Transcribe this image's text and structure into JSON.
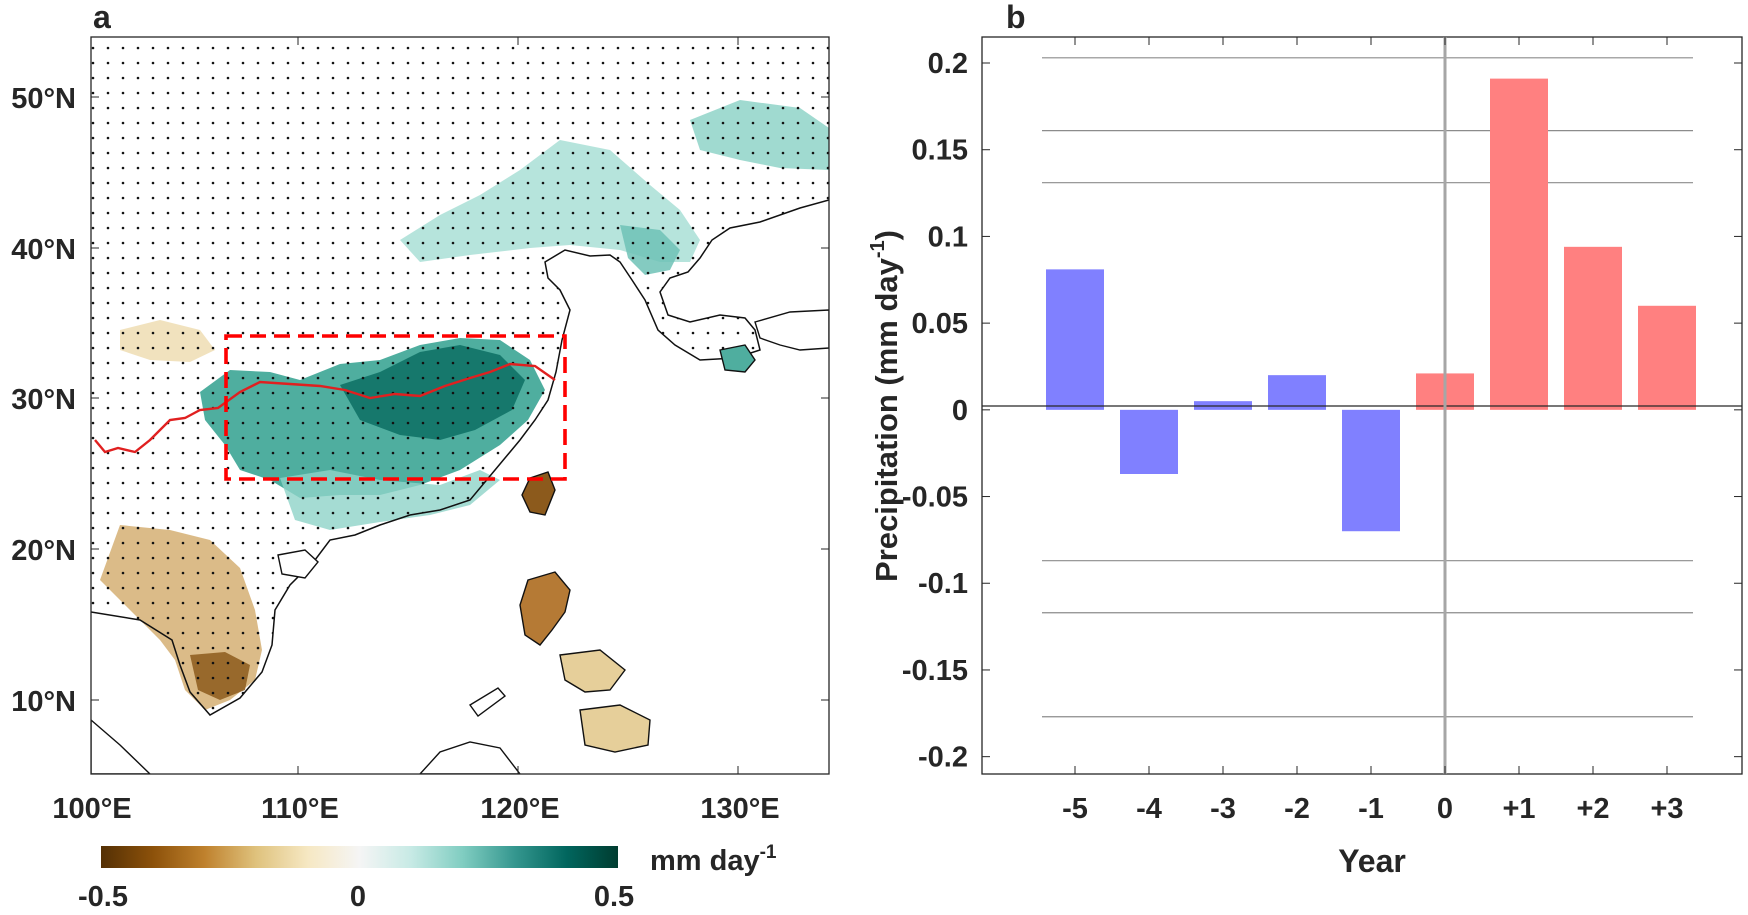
{
  "panel_a": {
    "label": "a",
    "lat_ticks": [
      "50°N",
      "40°N",
      "30°N",
      "20°N",
      "10°N"
    ],
    "lon_ticks": [
      "100°E",
      "110°E",
      "120°E",
      "130°E"
    ],
    "colorbar": {
      "unit": "mm day",
      "unit_sup": "-1",
      "ticks": [
        "-0.5",
        "0",
        "0.5"
      ],
      "colors": [
        "#543005",
        "#8c510a",
        "#bf812d",
        "#dfc27d",
        "#f6e8c3",
        "#f5f5f5",
        "#c7eae5",
        "#80cdc1",
        "#35978f",
        "#01665e",
        "#003c30"
      ]
    },
    "box_color": "#ff0000",
    "river_color": "#e02020"
  },
  "panel_b": {
    "label": "b",
    "ylabel_text": "Precipitation (mm day",
    "ylabel_sup": "-1",
    "ylabel_close": ")",
    "xlabel": "Year",
    "neg_color": "#8080ff",
    "pos_color": "#ff8080"
  },
  "chart_data": {
    "type": "bar",
    "title": "",
    "xlabel": "Year",
    "ylabel": "Precipitation (mm day-1)",
    "categories": [
      "-5",
      "-4",
      "-3",
      "-2",
      "-1",
      "0",
      "+1",
      "+2",
      "+3"
    ],
    "values": [
      0.081,
      -0.037,
      0.005,
      0.02,
      -0.07,
      0.021,
      0.191,
      0.094,
      0.06
    ],
    "ylim": [
      -0.21,
      0.215
    ],
    "yticks": [
      0.2,
      0.15,
      0.1,
      0.05,
      0,
      -0.05,
      -0.1,
      -0.15,
      -0.2
    ],
    "ytick_labels": [
      "0.2",
      "0.15",
      "0.1",
      "0.05",
      "0",
      "-0.05",
      "-0.1",
      "-0.15",
      "-0.2"
    ],
    "reference_lines": [
      0.203,
      0.161,
      0.131,
      -0.087,
      -0.117,
      -0.177
    ]
  }
}
